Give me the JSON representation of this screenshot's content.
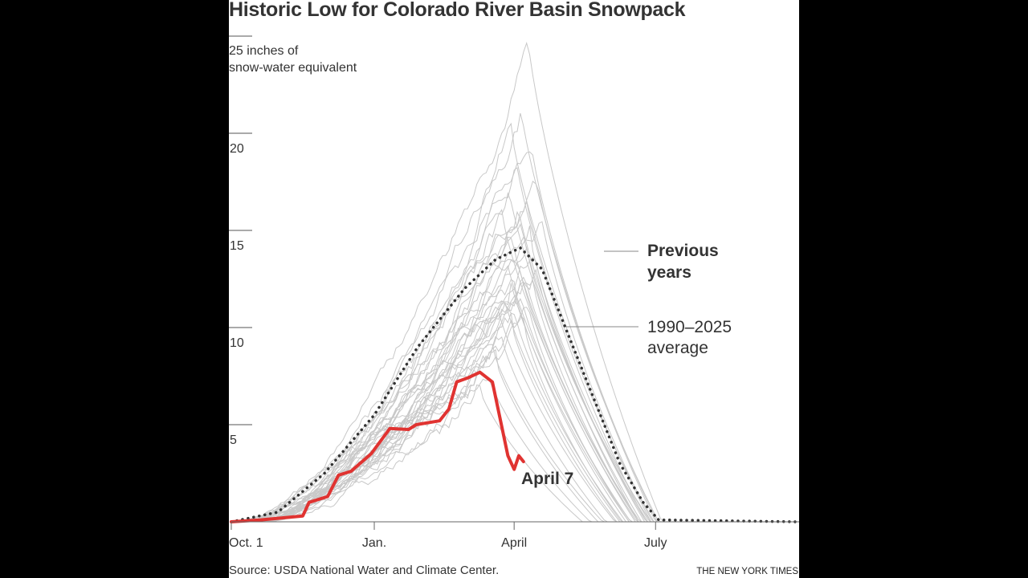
{
  "chart_data": {
    "type": "line",
    "title": "Historic Low for Colorado River Basin Snowpack",
    "ylabel": "inches of snow-water equivalent",
    "ylabel_lines": [
      "25 inches of",
      "snow-water equivalent"
    ],
    "ylim": [
      0,
      25
    ],
    "yticks": [
      5,
      10,
      15,
      20
    ],
    "xlim": [
      "10-01",
      "09-30"
    ],
    "xticks": [
      {
        "date": "10-01",
        "label": "Oct. 1"
      },
      {
        "date": "01-01",
        "label": "Jan."
      },
      {
        "date": "04-01",
        "label": "April"
      },
      {
        "date": "07-01",
        "label": "July"
      }
    ],
    "grid": false,
    "colors": {
      "current": "#e03331",
      "previous": "#c8c8c8",
      "average": "#333333"
    },
    "current_year": {
      "label": "April 7",
      "points": [
        [
          "10-01",
          0
        ],
        [
          "10-20",
          0.1
        ],
        [
          "11-16",
          0.3
        ],
        [
          "11-20",
          1.0
        ],
        [
          "12-02",
          1.3
        ],
        [
          "12-09",
          2.4
        ],
        [
          "12-17",
          2.6
        ],
        [
          "12-30",
          3.5
        ],
        [
          "01-11",
          4.8
        ],
        [
          "01-23",
          4.75
        ],
        [
          "01-28",
          5.0
        ],
        [
          "02-12",
          5.2
        ],
        [
          "02-18",
          5.8
        ],
        [
          "02-23",
          7.2
        ],
        [
          "03-02",
          7.4
        ],
        [
          "03-10",
          7.7
        ],
        [
          "03-18",
          7.2
        ],
        [
          "03-28",
          3.4
        ],
        [
          "04-01",
          2.7
        ],
        [
          "04-04",
          3.4
        ],
        [
          "04-07",
          3.1
        ]
      ]
    },
    "average": {
      "label": "1990–2025 average",
      "points": [
        [
          "10-01",
          0
        ],
        [
          "10-31",
          0.5
        ],
        [
          "11-30",
          2.5
        ],
        [
          "01-01",
          5.5
        ],
        [
          "01-29",
          9
        ],
        [
          "02-28",
          12
        ],
        [
          "03-20",
          13.5
        ],
        [
          "04-05",
          14.1
        ],
        [
          "04-19",
          13
        ],
        [
          "05-04",
          10
        ],
        [
          "05-19",
          7
        ],
        [
          "06-08",
          3
        ],
        [
          "06-23",
          1
        ],
        [
          "07-03",
          0.1
        ],
        [
          "09-30",
          0
        ]
      ]
    },
    "previous_years": {
      "label": "Previous years",
      "years": [
        {
          "peak": 24.8,
          "peak_date": "04-10",
          "melt_out": "07-05"
        },
        {
          "peak": 21.5,
          "peak_date": "04-05",
          "melt_out": "07-01"
        },
        {
          "peak": 20.3,
          "peak_date": "03-30",
          "melt_out": "06-28"
        },
        {
          "peak": 19.5,
          "peak_date": "04-12",
          "melt_out": "07-02"
        },
        {
          "peak": 18.8,
          "peak_date": "04-02",
          "melt_out": "06-25"
        },
        {
          "peak": 18.0,
          "peak_date": "04-15",
          "melt_out": "07-03"
        },
        {
          "peak": 17.4,
          "peak_date": "03-28",
          "melt_out": "06-20"
        },
        {
          "peak": 17.0,
          "peak_date": "04-08",
          "melt_out": "06-30"
        },
        {
          "peak": 16.5,
          "peak_date": "04-03",
          "melt_out": "06-24"
        },
        {
          "peak": 16.0,
          "peak_date": "04-18",
          "melt_out": "06-29"
        },
        {
          "peak": 15.6,
          "peak_date": "03-25",
          "melt_out": "06-18"
        },
        {
          "peak": 15.2,
          "peak_date": "04-06",
          "melt_out": "06-26"
        },
        {
          "peak": 14.8,
          "peak_date": "04-11",
          "melt_out": "06-27"
        },
        {
          "peak": 14.5,
          "peak_date": "03-31",
          "melt_out": "06-20"
        },
        {
          "peak": 14.2,
          "peak_date": "04-09",
          "melt_out": "06-22"
        },
        {
          "peak": 13.9,
          "peak_date": "04-14",
          "melt_out": "06-25"
        },
        {
          "peak": 13.6,
          "peak_date": "03-27",
          "melt_out": "06-15"
        },
        {
          "peak": 13.3,
          "peak_date": "04-04",
          "melt_out": "06-19"
        },
        {
          "peak": 13.0,
          "peak_date": "04-07",
          "melt_out": "06-21"
        },
        {
          "peak": 12.7,
          "peak_date": "03-29",
          "melt_out": "06-14"
        },
        {
          "peak": 12.4,
          "peak_date": "04-13",
          "melt_out": "06-20"
        },
        {
          "peak": 12.1,
          "peak_date": "04-01",
          "melt_out": "06-12"
        },
        {
          "peak": 11.8,
          "peak_date": "04-05",
          "melt_out": "06-15"
        },
        {
          "peak": 11.5,
          "peak_date": "03-26",
          "melt_out": "06-08"
        },
        {
          "peak": 11.2,
          "peak_date": "04-10",
          "melt_out": "06-14"
        },
        {
          "peak": 10.9,
          "peak_date": "03-22",
          "melt_out": "06-05"
        },
        {
          "peak": 10.6,
          "peak_date": "04-02",
          "melt_out": "06-10"
        },
        {
          "peak": 10.3,
          "peak_date": "03-30",
          "melt_out": "06-06"
        },
        {
          "peak": 9.9,
          "peak_date": "04-08",
          "melt_out": "06-09"
        },
        {
          "peak": 9.5,
          "peak_date": "03-24",
          "melt_out": "05-30"
        },
        {
          "peak": 9.0,
          "peak_date": "03-18",
          "melt_out": "05-28"
        },
        {
          "peak": 8.4,
          "peak_date": "03-20",
          "melt_out": "05-25"
        },
        {
          "peak": 7.6,
          "peak_date": "03-15",
          "melt_out": "05-20"
        },
        {
          "peak": 6.8,
          "peak_date": "03-10",
          "melt_out": "05-15"
        },
        {
          "peak": 12.8,
          "peak_date": "04-16",
          "melt_out": "06-28"
        }
      ]
    }
  },
  "source": "Source: USDA National Water and Climate Center.",
  "credit": "THE NEW YORK TIMES"
}
